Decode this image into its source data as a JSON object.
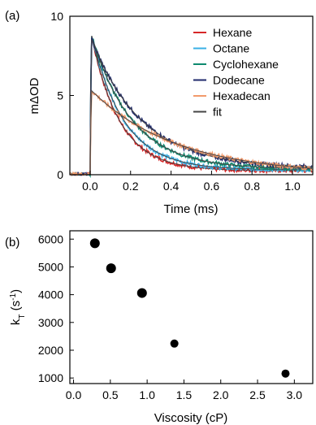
{
  "chart_data": [
    {
      "panel_label": "(a)",
      "type": "line",
      "xlabel": "Time (ms)",
      "ylabel": "mΔOD",
      "xlim": [
        -0.1,
        1.1
      ],
      "ylim": [
        0,
        10
      ],
      "x_ticks": [
        0.0,
        0.2,
        0.4,
        0.6,
        0.8,
        1.0
      ],
      "x_tick_labels": [
        "0.0",
        "0.2",
        "0.4",
        "0.6",
        "0.8",
        "1.0"
      ],
      "y_ticks": [
        0,
        5,
        10
      ],
      "y_tick_labels": [
        "0",
        "5",
        "10"
      ],
      "legend_position": "top-right",
      "series": [
        {
          "name": "Hexane",
          "color": "#d62728",
          "peak": 9.2,
          "tau_ms": 0.14,
          "offset": 0.25
        },
        {
          "name": "Octane",
          "color": "#3ab0e6",
          "peak": 9.2,
          "tau_ms": 0.16,
          "offset": 0.3
        },
        {
          "name": "Cyclohexane",
          "color": "#0e8a6f",
          "peak": 9.1,
          "tau_ms": 0.2,
          "offset": 0.35
        },
        {
          "name": "Dodecane",
          "color": "#1f2a6b",
          "peak": 8.8,
          "tau_ms": 0.25,
          "offset": 0.4
        },
        {
          "name": "Hexadecan",
          "color": "#f29a6b",
          "peak": 5.4,
          "tau_ms": 0.42,
          "offset": 0.0
        },
        {
          "name": "fit",
          "color": "#444444"
        }
      ]
    },
    {
      "panel_label": "(b)",
      "type": "scatter",
      "xlabel": "Viscosity (cP)",
      "ylabel_main": "k",
      "ylabel_sub": "T",
      "ylabel_rest": " (s",
      "ylabel_sup": "-1",
      "ylabel_end": ")",
      "xlim": [
        -0.05,
        3.25
      ],
      "ylim": [
        800,
        6300
      ],
      "x_ticks": [
        0.0,
        0.5,
        1.0,
        1.5,
        2.0,
        2.5,
        3.0
      ],
      "x_tick_labels": [
        "0.0",
        "0.5",
        "1.0",
        "1.5",
        "2.0",
        "2.5",
        "3.0"
      ],
      "y_ticks": [
        1000,
        2000,
        3000,
        4000,
        5000,
        6000
      ],
      "y_tick_labels": [
        "1000",
        "2000",
        "3000",
        "4000",
        "5000",
        "6000"
      ],
      "points": [
        {
          "x": 0.29,
          "y": 5850
        },
        {
          "x": 0.51,
          "y": 4950
        },
        {
          "x": 0.93,
          "y": 4060
        },
        {
          "x": 1.37,
          "y": 2240
        },
        {
          "x": 2.88,
          "y": 1160
        }
      ],
      "marker_color": "#000000"
    }
  ]
}
